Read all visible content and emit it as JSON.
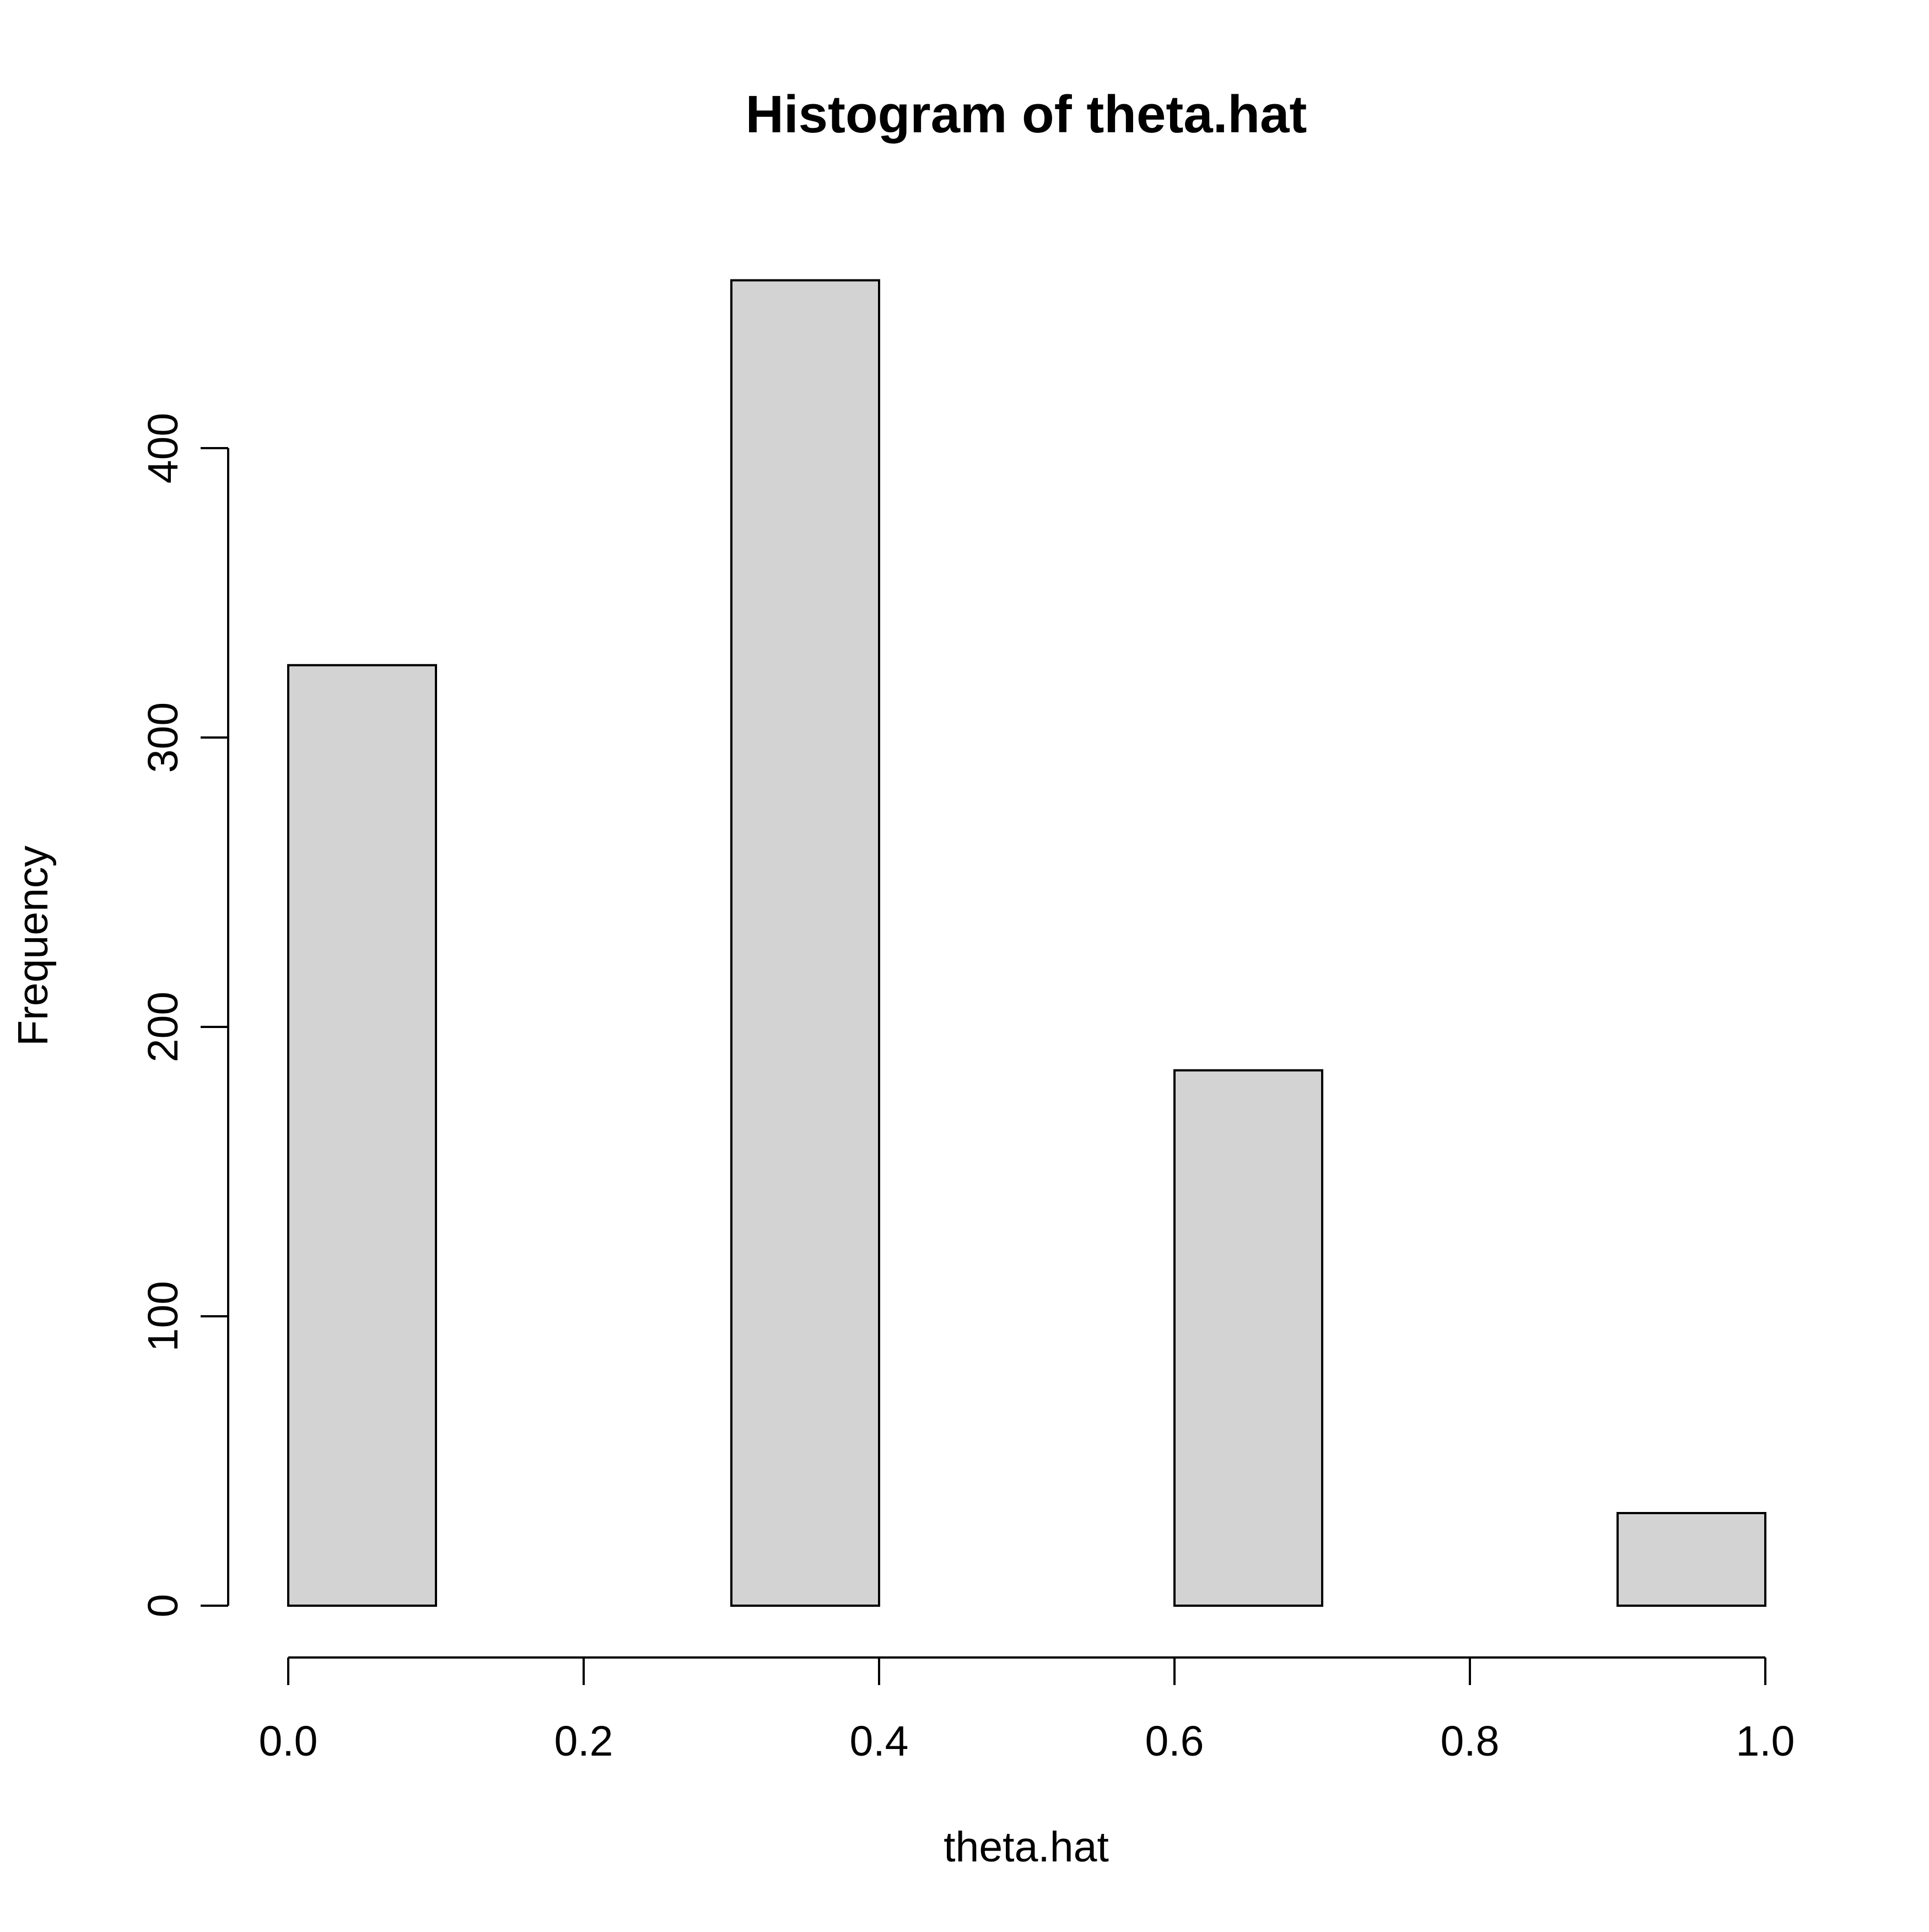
{
  "chart_data": {
    "type": "bar",
    "title": "Histogram of theta.hat",
    "xlabel": "theta.hat",
    "ylabel": "Frequency",
    "bins": [
      {
        "from": 0.0,
        "to": 0.1,
        "count": 325
      },
      {
        "from": 0.1,
        "to": 0.2,
        "count": 0
      },
      {
        "from": 0.2,
        "to": 0.3,
        "count": 0
      },
      {
        "from": 0.3,
        "to": 0.4,
        "count": 458
      },
      {
        "from": 0.4,
        "to": 0.5,
        "count": 0
      },
      {
        "from": 0.5,
        "to": 0.6,
        "count": 0
      },
      {
        "from": 0.6,
        "to": 0.7,
        "count": 185
      },
      {
        "from": 0.7,
        "to": 0.8,
        "count": 0
      },
      {
        "from": 0.8,
        "to": 0.9,
        "count": 0
      },
      {
        "from": 0.9,
        "to": 1.0,
        "count": 32
      }
    ],
    "xlim": [
      0.0,
      1.0
    ],
    "ylim": [
      0,
      458
    ],
    "x_ticks": [
      "0.0",
      "0.2",
      "0.4",
      "0.6",
      "0.8",
      "1.0"
    ],
    "y_ticks": [
      "0",
      "100",
      "200",
      "300",
      "400"
    ],
    "grid": false,
    "legend": "none",
    "bar_fill": "#d3d3d3",
    "bar_stroke": "#000000"
  }
}
